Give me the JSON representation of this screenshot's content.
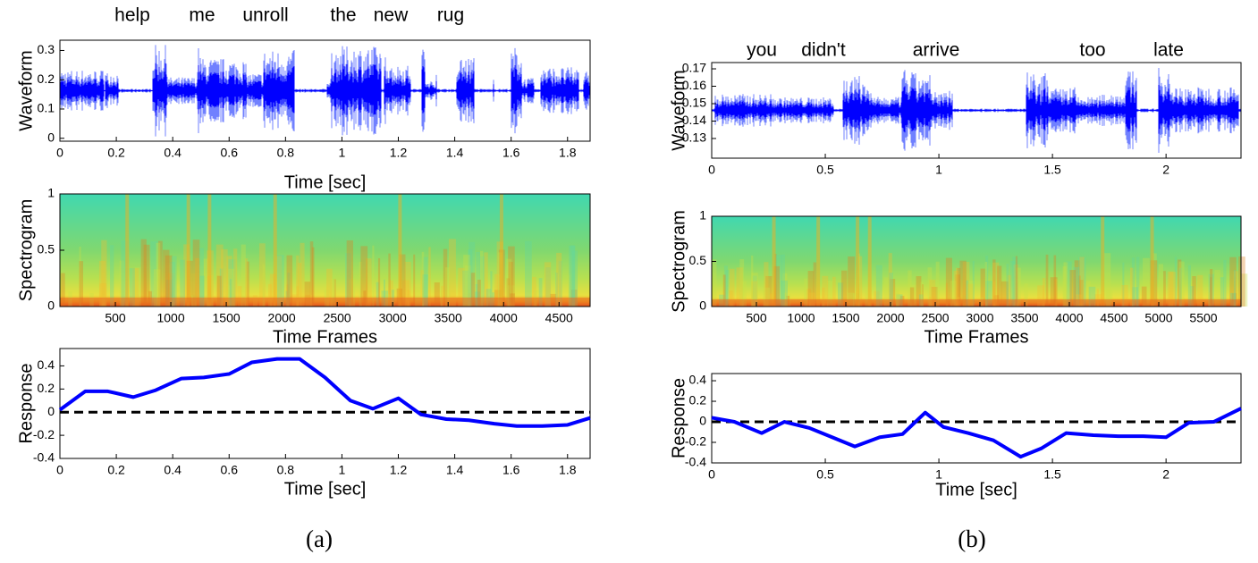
{
  "figure_labels": [
    "(a)",
    "(b)"
  ],
  "chart_data": [
    {
      "type": "waveform",
      "annotations": [
        "help",
        "me",
        "unroll",
        "the",
        "new",
        "rug"
      ],
      "ylabel": "Waveform",
      "xlabel": "Time [sec]",
      "xlim": [
        0,
        1.88
      ],
      "xticks": [
        0,
        0.2,
        0.4,
        0.6,
        0.8,
        1,
        1.2,
        1.4,
        1.6,
        1.8
      ],
      "ylim": [
        -0.01,
        0.335
      ],
      "yticks": [
        0,
        0.1,
        0.2,
        0.3
      ],
      "color": "#0000ff"
    },
    {
      "type": "spectrogram",
      "ylabel": "Spectrogram",
      "xlabel": "Time Frames",
      "xlim": [
        0,
        4780
      ],
      "xticks": [
        500,
        1000,
        1500,
        2000,
        2500,
        3000,
        3500,
        4000,
        4500
      ],
      "ylim": [
        0,
        1
      ],
      "yticks": [
        0,
        0.5,
        1
      ]
    },
    {
      "type": "line",
      "ylabel": "Response",
      "xlabel": "Time [sec]",
      "xlim": [
        0,
        1.88
      ],
      "xticks": [
        0,
        0.2,
        0.4,
        0.6,
        0.8,
        1,
        1.2,
        1.4,
        1.6,
        1.8
      ],
      "ylim": [
        -0.4,
        0.55
      ],
      "yticks": [
        -0.4,
        -0.2,
        0,
        0.2,
        0.4
      ],
      "hline": 0,
      "color": "#0000ff",
      "x": [
        0,
        0.09,
        0.17,
        0.26,
        0.34,
        0.43,
        0.51,
        0.6,
        0.68,
        0.77,
        0.85,
        0.94,
        1.03,
        1.11,
        1.2,
        1.28,
        1.37,
        1.45,
        1.54,
        1.62,
        1.71,
        1.8,
        1.88
      ],
      "values": [
        0.02,
        0.18,
        0.18,
        0.13,
        0.19,
        0.29,
        0.3,
        0.33,
        0.43,
        0.46,
        0.46,
        0.3,
        0.1,
        0.03,
        0.12,
        -0.02,
        -0.06,
        -0.07,
        -0.1,
        -0.12,
        -0.12,
        -0.11,
        -0.05
      ]
    },
    {
      "type": "waveform",
      "annotations": [
        "you",
        "didn't",
        "arrive",
        "too",
        "late"
      ],
      "ylabel": "Waveform",
      "xlim": [
        0,
        2.33
      ],
      "xticks": [
        0,
        0.5,
        1,
        1.5,
        2
      ],
      "ylim": [
        0.1187,
        0.1736
      ],
      "yticks": [
        0.13,
        0.14,
        0.15,
        0.16,
        0.17
      ],
      "color": "#0000ff"
    },
    {
      "type": "spectrogram",
      "ylabel": "Spectrogram",
      "xlabel": "Time Frames",
      "xlim": [
        0,
        5920
      ],
      "xticks": [
        500,
        1000,
        1500,
        2000,
        2500,
        3000,
        3500,
        4000,
        4500,
        5000,
        5500
      ],
      "ylim": [
        0,
        1
      ],
      "yticks": [
        0,
        0.5,
        1
      ]
    },
    {
      "type": "line",
      "ylabel": "Response",
      "xlabel": "Time [sec]",
      "xlim": [
        0,
        2.33
      ],
      "xticks": [
        0,
        0.5,
        1,
        1.5,
        2
      ],
      "ylim": [
        -0.4,
        0.47
      ],
      "yticks": [
        -0.4,
        -0.2,
        0,
        0.2,
        0.4
      ],
      "hline": 0,
      "color": "#0000ff",
      "x": [
        0,
        0.1,
        0.22,
        0.32,
        0.43,
        0.53,
        0.63,
        0.74,
        0.84,
        0.94,
        1.02,
        1.13,
        1.24,
        1.36,
        1.45,
        1.56,
        1.68,
        1.79,
        1.9,
        2.0,
        2.1,
        2.21,
        2.33
      ],
      "values": [
        0.04,
        0.0,
        -0.11,
        0.0,
        -0.06,
        -0.15,
        -0.24,
        -0.15,
        -0.12,
        0.09,
        -0.05,
        -0.11,
        -0.18,
        -0.34,
        -0.26,
        -0.11,
        -0.13,
        -0.14,
        -0.14,
        -0.15,
        -0.01,
        0.0,
        0.13
      ]
    }
  ]
}
